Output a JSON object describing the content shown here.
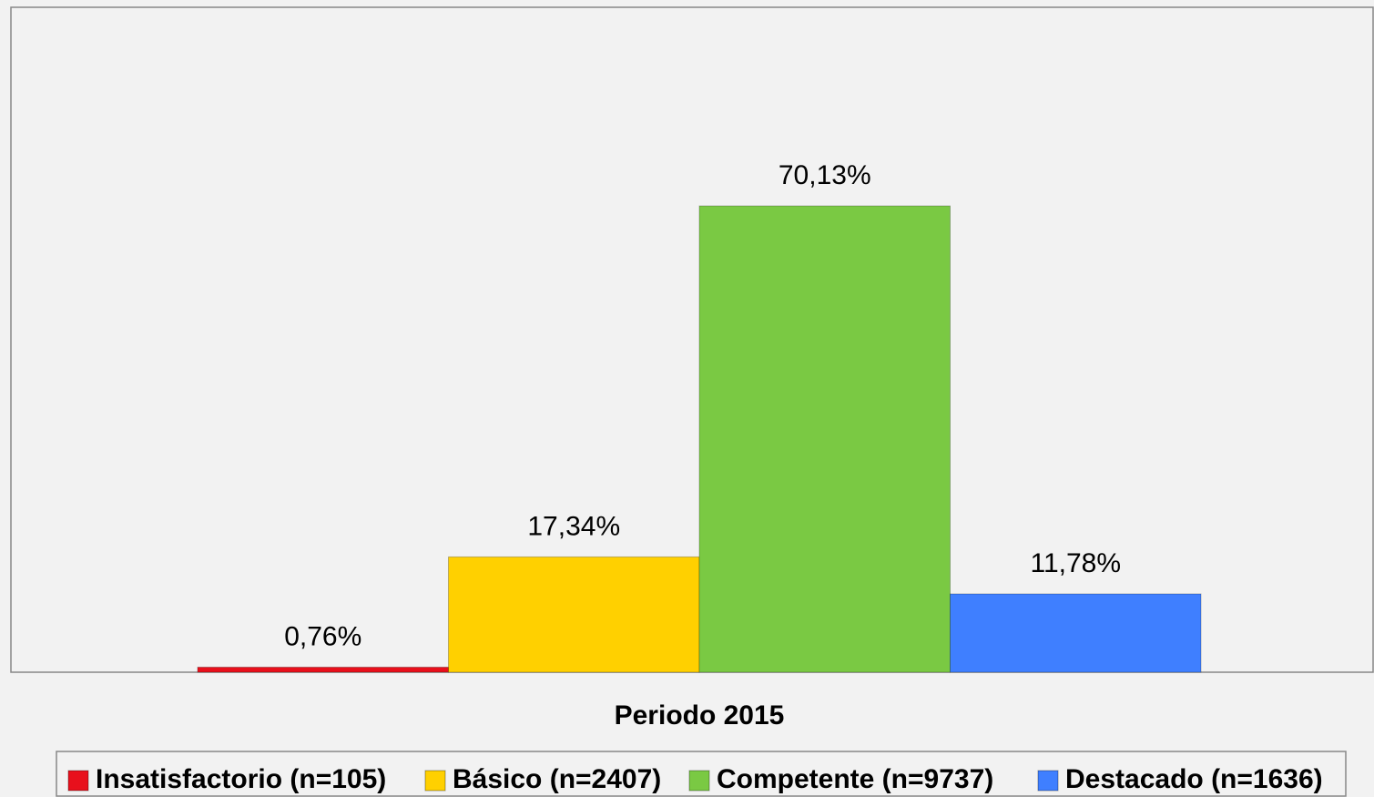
{
  "chart_data": {
    "type": "bar",
    "categories": [
      "Periodo 2015"
    ],
    "series": [
      {
        "name": "Insatisfactorio (n=105)",
        "color": "#e8101c",
        "values": [
          0.76
        ],
        "value_labels": [
          "0,76%"
        ]
      },
      {
        "name": "Básico (n=2407)",
        "color": "#ffd000",
        "values": [
          17.34
        ],
        "value_labels": [
          "17,34%"
        ]
      },
      {
        "name": "Competente (n=9737)",
        "color": "#7ac943",
        "values": [
          70.13
        ],
        "value_labels": [
          "70,13%"
        ]
      },
      {
        "name": "Destacado (n=1636)",
        "color": "#3f7fff",
        "values": [
          11.78
        ],
        "value_labels": [
          "11,78%"
        ]
      }
    ],
    "ylim": [
      0,
      100
    ],
    "legend": "bottom"
  }
}
